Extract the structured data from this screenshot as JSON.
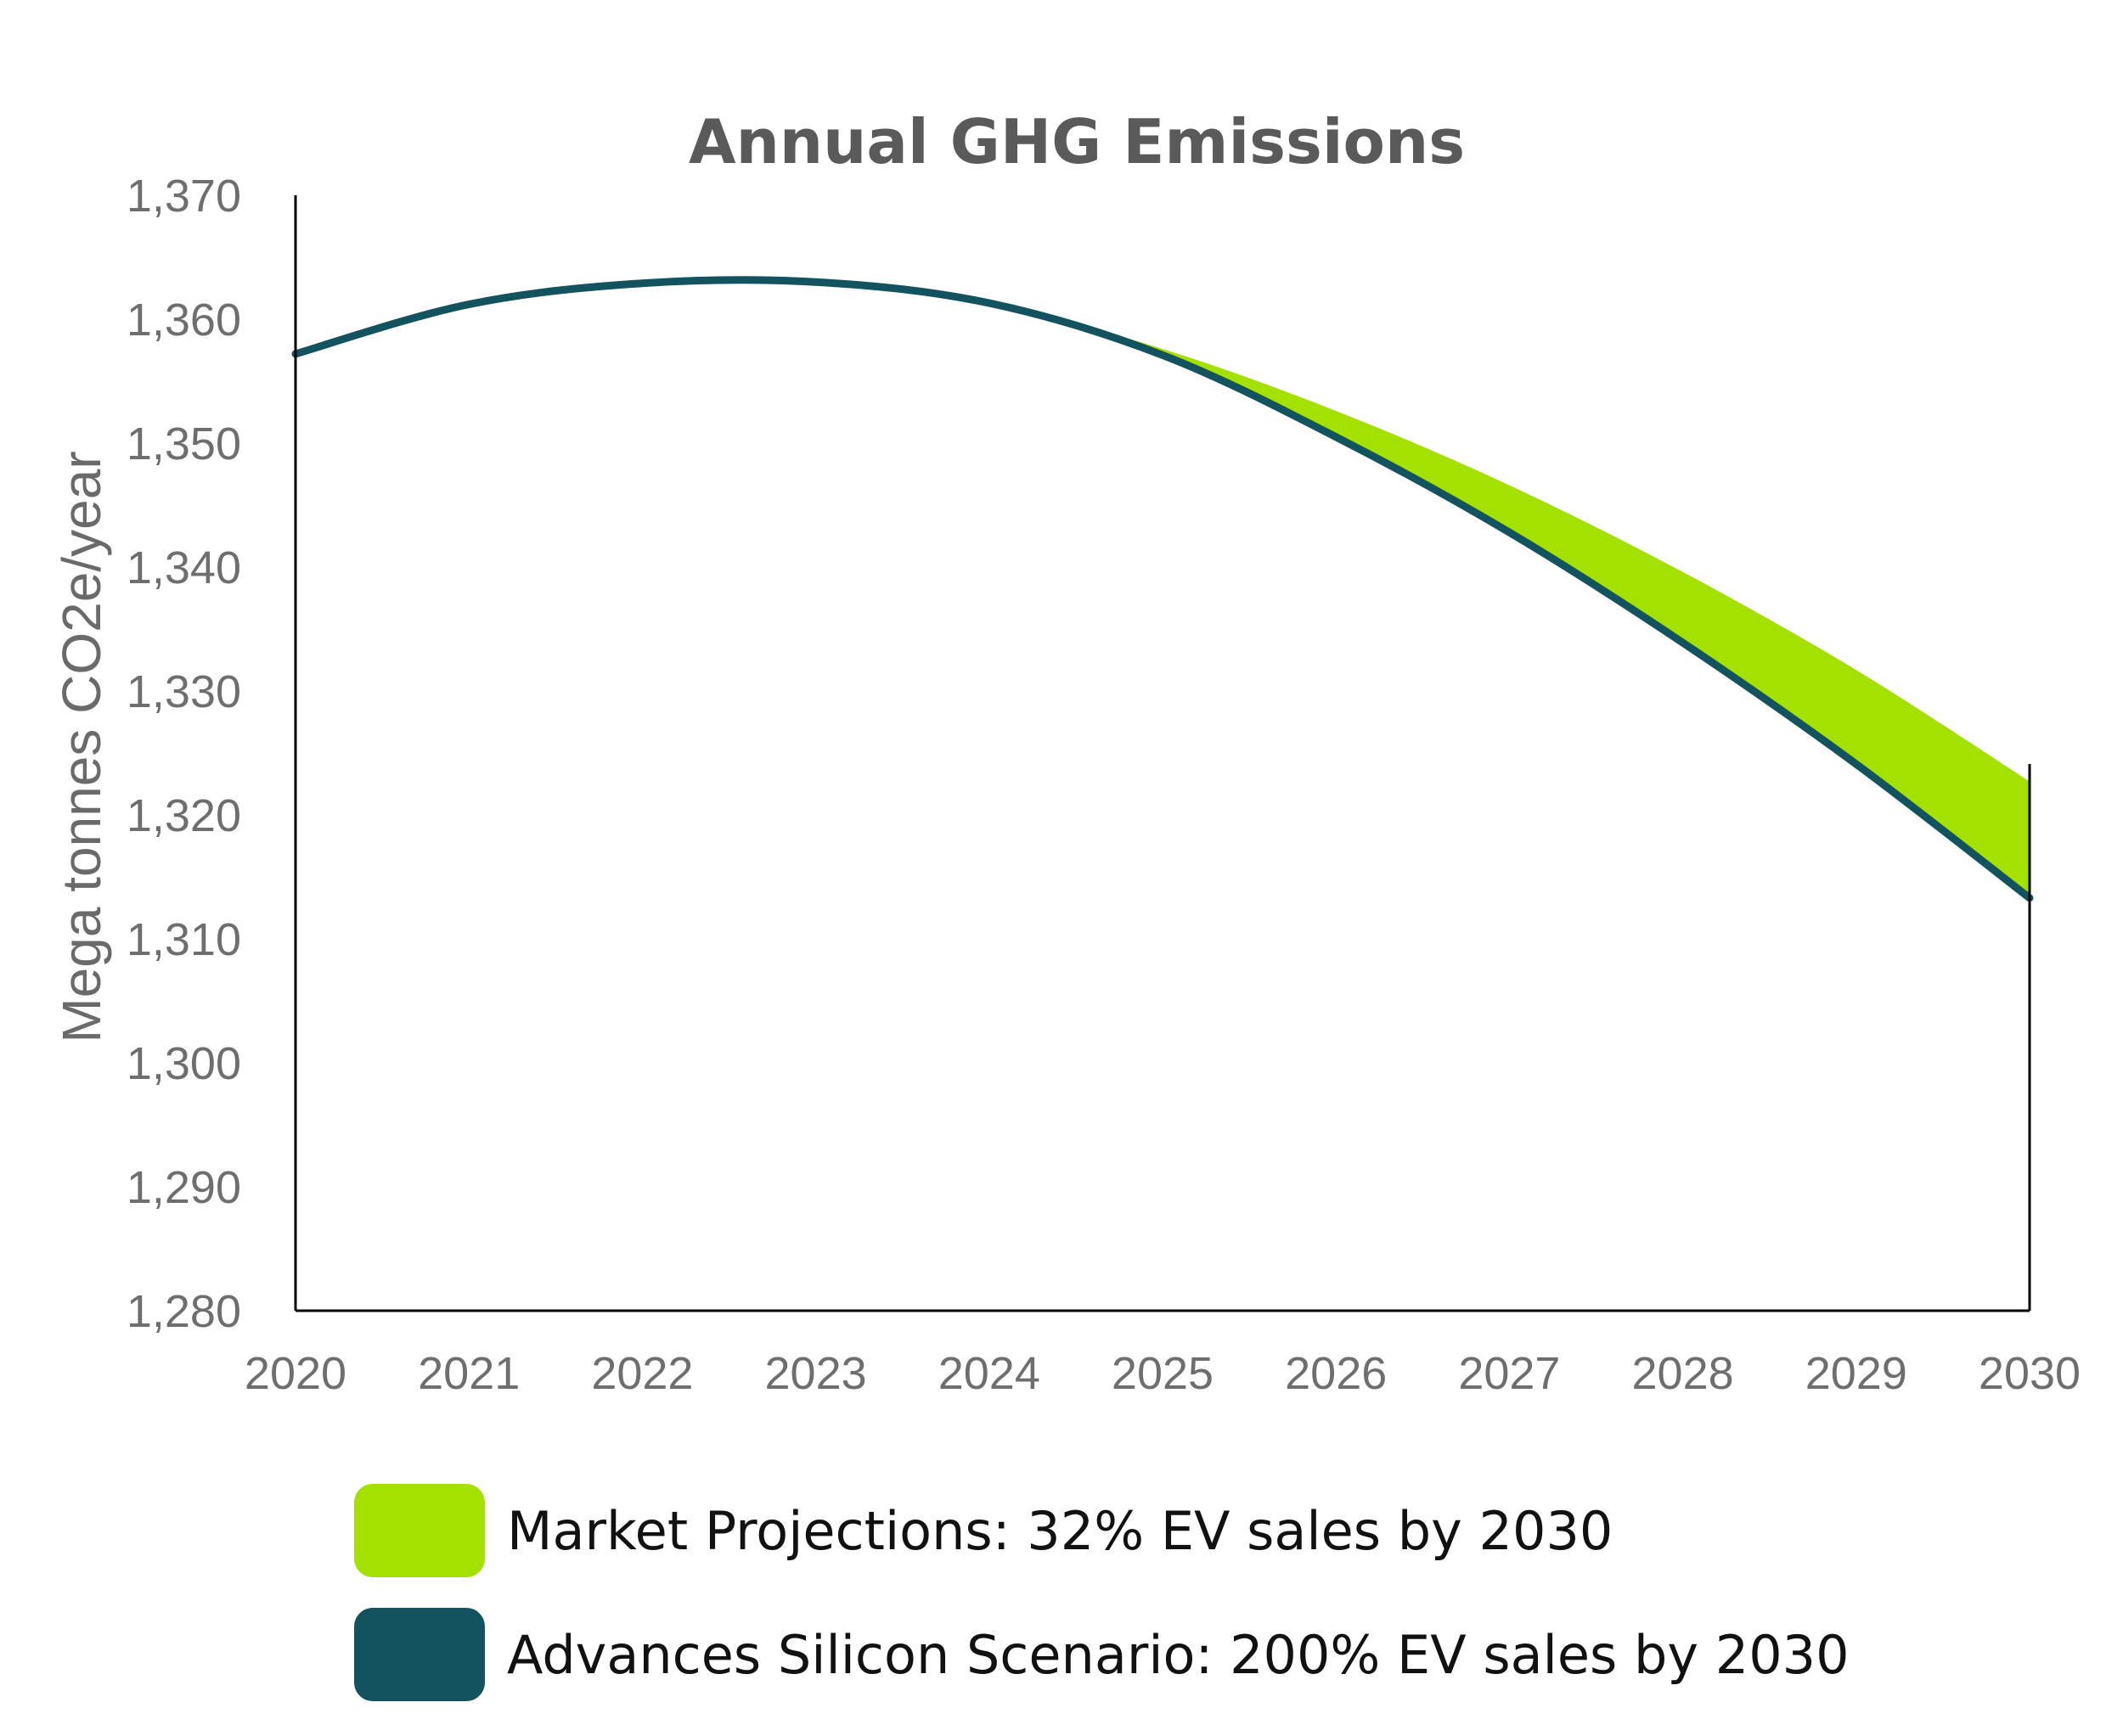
{
  "chart_data": {
    "type": "area",
    "title": "Annual GHG Emissions",
    "xlabel": "",
    "ylabel": "Mega tonnes CO2e/year",
    "x": [
      2020,
      2021,
      2022,
      2023,
      2024,
      2025,
      2026,
      2027,
      2028,
      2029,
      2030
    ],
    "xlim": [
      2020,
      2030
    ],
    "ylim": [
      1280,
      1370
    ],
    "yticks": [
      1280,
      1290,
      1300,
      1310,
      1320,
      1330,
      1340,
      1350,
      1360,
      1370
    ],
    "ytick_labels": [
      "1,280",
      "1,290",
      "1,300",
      "1,310",
      "1,320",
      "1,330",
      "1,340",
      "1,350",
      "1,360",
      "1,370"
    ],
    "xtick_labels": [
      "2020",
      "2021",
      "2022",
      "2023",
      "2024",
      "2025",
      "2026",
      "2027",
      "2028",
      "2029",
      "2030"
    ],
    "grid": false,
    "legend_position": "bottom",
    "series": [
      {
        "name": "Market Projections: 32% EV sales by 2030",
        "color": "#a4e000",
        "render": "band",
        "values": [
          1357.2,
          1361.2,
          1362.9,
          1363.0,
          1361.3,
          1357.6,
          1352.6,
          1346.6,
          1339.6,
          1331.7,
          1322.7
        ]
      },
      {
        "name": "Advances Silicon Scenario: 200% EV sales by 2030",
        "color": "#12535f",
        "render": "line",
        "values": [
          1357.2,
          1361.2,
          1362.9,
          1363.0,
          1361.3,
          1357.1,
          1350.5,
          1342.8,
          1333.9,
          1324.1,
          1313.3
        ]
      }
    ]
  }
}
